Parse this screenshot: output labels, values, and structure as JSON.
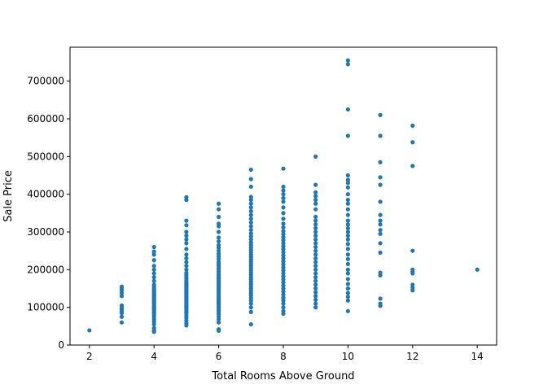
{
  "chart_data": {
    "type": "scatter",
    "title": "",
    "xlabel": "Total Rooms Above Ground",
    "ylabel": "Sale Price",
    "xlim": [
      1.4,
      14.6
    ],
    "ylim": [
      0,
      790000
    ],
    "x_ticks": [
      2,
      4,
      6,
      8,
      10,
      12,
      14
    ],
    "y_ticks": [
      0,
      100000,
      200000,
      300000,
      400000,
      500000,
      600000,
      700000
    ],
    "grid": false,
    "legend": "none",
    "marker_color": "#1f77b4",
    "series": [
      {
        "points": [
          {
            "x": 2,
            "values": [
              39000
            ]
          },
          {
            "x": 3,
            "values": [
              60000,
              75000,
              85000,
              90000,
              95000,
              100000,
              105000,
              130000,
              138000,
              145000,
              150000,
              155000
            ]
          },
          {
            "x": 4,
            "values": [
              35000,
              38000,
              45000,
              55000,
              62000,
              68000,
              75000,
              80000,
              85000,
              88000,
              92000,
              95000,
              98000,
              100000,
              103000,
              106000,
              110000,
              113000,
              116000,
              119000,
              122000,
              125000,
              128000,
              131000,
              134000,
              137000,
              140000,
              143000,
              146000,
              150000,
              155000,
              160000,
              170000,
              180000,
              190000,
              200000,
              210000,
              225000,
              240000,
              248000,
              260000
            ]
          },
          {
            "x": 5,
            "values": [
              52000,
              58000,
              65000,
              72000,
              78000,
              84000,
              88000,
              92000,
              96000,
              100000,
              103000,
              106000,
              109000,
              112000,
              115000,
              118000,
              121000,
              124000,
              127000,
              130000,
              133000,
              136000,
              139000,
              142000,
              145000,
              148000,
              151000,
              154000,
              157000,
              160000,
              163000,
              166000,
              170000,
              175000,
              180000,
              186000,
              192000,
              200000,
              210000,
              220000,
              230000,
              240000,
              255000,
              270000,
              280000,
              290000,
              300000,
              318000,
              330000,
              385000,
              392000
            ]
          },
          {
            "x": 6,
            "values": [
              38000,
              42000,
              60000,
              68000,
              75000,
              82000,
              88000,
              93000,
              98000,
              103000,
              108000,
              112000,
              116000,
              120000,
              124000,
              128000,
              132000,
              136000,
              140000,
              144000,
              148000,
              152000,
              156000,
              160000,
              164000,
              168000,
              172000,
              176000,
              180000,
              185000,
              190000,
              195000,
              200000,
              205000,
              210000,
              215000,
              220000,
              228000,
              235000,
              242000,
              250000,
              258000,
              265000,
              275000,
              285000,
              300000,
              315000,
              322000,
              340000,
              360000,
              375000
            ]
          },
          {
            "x": 7,
            "values": [
              55000,
              88000,
              100000,
              110000,
              118000,
              125000,
              132000,
              138000,
              144000,
              150000,
              156000,
              162000,
              168000,
              174000,
              180000,
              186000,
              192000,
              198000,
              204000,
              210000,
              216000,
              222000,
              228000,
              234000,
              240000,
              246000,
              252000,
              258000,
              265000,
              272000,
              280000,
              288000,
              296000,
              305000,
              315000,
              325000,
              335000,
              345000,
              355000,
              365000,
              375000,
              385000,
              393000,
              420000,
              440000,
              465000
            ]
          },
          {
            "x": 8,
            "values": [
              83000,
              90000,
              100000,
              110000,
              118000,
              126000,
              134000,
              142000,
              150000,
              158000,
              166000,
              174000,
              182000,
              190000,
              198000,
              206000,
              214000,
              222000,
              230000,
              238000,
              246000,
              254000,
              262000,
              270000,
              278000,
              286000,
              294000,
              302000,
              312000,
              322000,
              335000,
              350000,
              365000,
              380000,
              390000,
              400000,
              410000,
              420000,
              468000
            ]
          },
          {
            "x": 9,
            "values": [
              100000,
              110000,
              120000,
              130000,
              140000,
              150000,
              160000,
              170000,
              180000,
              190000,
              200000,
              210000,
              220000,
              230000,
              240000,
              250000,
              260000,
              270000,
              280000,
              290000,
              300000,
              310000,
              320000,
              330000,
              340000,
              360000,
              375000,
              385000,
              395000,
              405000,
              425000,
              500000
            ]
          },
          {
            "x": 10,
            "values": [
              90000,
              118000,
              128000,
              138000,
              150000,
              162000,
              175000,
              190000,
              200000,
              215000,
              228000,
              240000,
              255000,
              268000,
              280000,
              290000,
              300000,
              310000,
              320000,
              330000,
              345000,
              360000,
              375000,
              385000,
              400000,
              418000,
              430000,
              438000,
              450000,
              555000,
              625000,
              745000,
              755000
            ]
          },
          {
            "x": 11,
            "values": [
              104000,
              110000,
              123000,
              185000,
              192000,
              245000,
              270000,
              295000,
              305000,
              320000,
              330000,
              345000,
              380000,
              425000,
              445000,
              485000,
              555000,
              610000
            ]
          },
          {
            "x": 12,
            "values": [
              145000,
              152000,
              160000,
              190000,
              195000,
              200000,
              250000,
              475000,
              538000,
              582000
            ]
          },
          {
            "x": 14,
            "values": [
              200000
            ]
          }
        ]
      }
    ]
  }
}
